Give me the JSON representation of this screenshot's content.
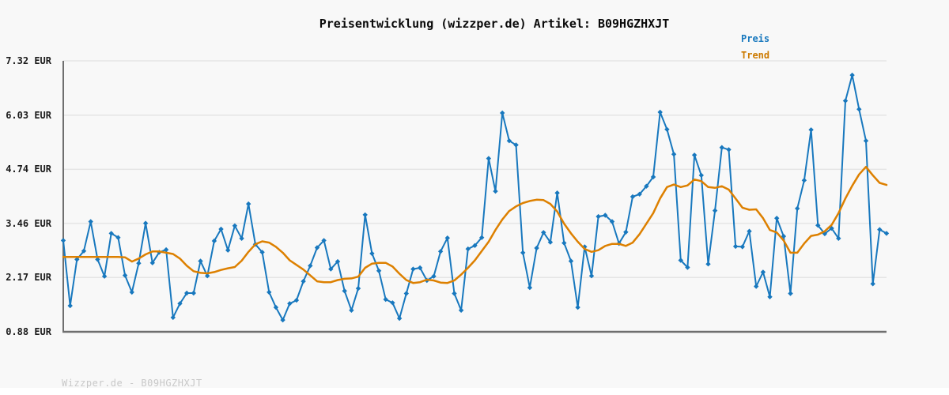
{
  "header": {
    "title": "Preisentwicklung (wizzper.de) Artikel: B09HGZHXJT"
  },
  "legend": {
    "preis": "Preis",
    "trend": "Trend"
  },
  "footer": {
    "watermark": "Wizzper.de - B09HGZHXJT"
  },
  "colors": {
    "price": "#1878be",
    "trend": "#dd8000",
    "legend_preis": "#1878be",
    "legend_trend": "#cc7a00",
    "grid": "#e5e5e5",
    "axis": "#6f6f6f",
    "background": "#f8f8f8",
    "tick_label": "#1b1b1b",
    "watermark": "#c8c8c8"
  },
  "chart_data": {
    "type": "line",
    "title": "Preisentwicklung (wizzper.de) Artikel: B09HGZHXJT",
    "currency": "EUR",
    "xlabel": "",
    "ylabel": "",
    "ylim": [
      0.88,
      7.32
    ],
    "y_ticks": [
      7.32,
      6.03,
      4.74,
      3.46,
      2.17,
      0.88
    ],
    "y_tick_labels": [
      "7.32 EUR",
      "6.03 EUR",
      "4.74 EUR",
      "3.46 EUR",
      "2.17 EUR",
      "0.88 EUR"
    ],
    "x_tick_labels": [],
    "grid": true,
    "legend_position": "top-right",
    "series": [
      {
        "name": "Preis",
        "color": "#1878be",
        "marker": "diamond",
        "values": [
          3.05,
          1.5,
          2.6,
          2.8,
          3.5,
          2.6,
          2.2,
          3.22,
          3.12,
          2.22,
          1.82,
          2.51,
          3.46,
          2.52,
          2.77,
          2.83,
          1.22,
          1.55,
          1.8,
          1.8,
          2.56,
          2.21,
          3.04,
          3.32,
          2.82,
          3.4,
          3.1,
          3.92,
          2.96,
          2.77,
          1.82,
          1.46,
          1.16,
          1.55,
          1.63,
          2.08,
          2.45,
          2.88,
          3.05,
          2.37,
          2.55,
          1.85,
          1.39,
          1.91,
          3.66,
          2.74,
          2.33,
          1.65,
          1.57,
          1.2,
          1.79,
          2.37,
          2.4,
          2.1,
          2.2,
          2.79,
          3.11,
          1.79,
          1.39,
          2.85,
          2.93,
          3.12,
          5.0,
          4.22,
          6.08,
          5.42,
          5.32,
          2.76,
          1.93,
          2.87,
          3.24,
          3.01,
          4.18,
          2.99,
          2.56,
          1.46,
          2.9,
          2.21,
          3.62,
          3.65,
          3.5,
          2.98,
          3.25,
          4.09,
          4.15,
          4.34,
          4.56,
          6.1,
          5.69,
          5.1,
          2.58,
          2.41,
          5.08,
          4.6,
          2.49,
          3.76,
          5.26,
          5.21,
          2.91,
          2.9,
          3.27,
          1.96,
          2.3,
          1.71,
          3.58,
          3.15,
          1.79,
          3.81,
          4.48,
          5.68,
          3.41,
          3.21,
          3.34,
          3.1,
          6.37,
          6.98,
          6.17,
          5.42,
          2.02,
          3.31,
          3.22
        ]
      },
      {
        "name": "Trend",
        "color": "#dd8000",
        "marker": "none",
        "values": [
          2.66,
          2.66,
          2.66,
          2.66,
          2.66,
          2.66,
          2.66,
          2.66,
          2.66,
          2.65,
          2.55,
          2.62,
          2.72,
          2.79,
          2.79,
          2.76,
          2.73,
          2.62,
          2.45,
          2.32,
          2.28,
          2.27,
          2.3,
          2.35,
          2.39,
          2.42,
          2.57,
          2.78,
          2.96,
          3.03,
          3.0,
          2.9,
          2.76,
          2.58,
          2.47,
          2.36,
          2.22,
          2.08,
          2.06,
          2.06,
          2.11,
          2.14,
          2.15,
          2.19,
          2.4,
          2.5,
          2.52,
          2.52,
          2.43,
          2.26,
          2.11,
          2.04,
          2.06,
          2.12,
          2.1,
          2.05,
          2.04,
          2.1,
          2.24,
          2.4,
          2.58,
          2.8,
          3.02,
          3.3,
          3.55,
          3.75,
          3.86,
          3.94,
          3.99,
          4.02,
          4.01,
          3.92,
          3.74,
          3.45,
          3.22,
          3.02,
          2.85,
          2.78,
          2.82,
          2.92,
          2.97,
          2.97,
          2.92,
          3.0,
          3.2,
          3.45,
          3.7,
          4.05,
          4.32,
          4.38,
          4.32,
          4.36,
          4.5,
          4.46,
          4.32,
          4.3,
          4.34,
          4.26,
          4.05,
          3.83,
          3.78,
          3.79,
          3.58,
          3.3,
          3.24,
          3.05,
          2.76,
          2.76,
          2.98,
          3.16,
          3.19,
          3.27,
          3.42,
          3.7,
          4.05,
          4.35,
          4.62,
          4.8,
          4.6,
          4.42,
          4.37
        ]
      }
    ]
  }
}
